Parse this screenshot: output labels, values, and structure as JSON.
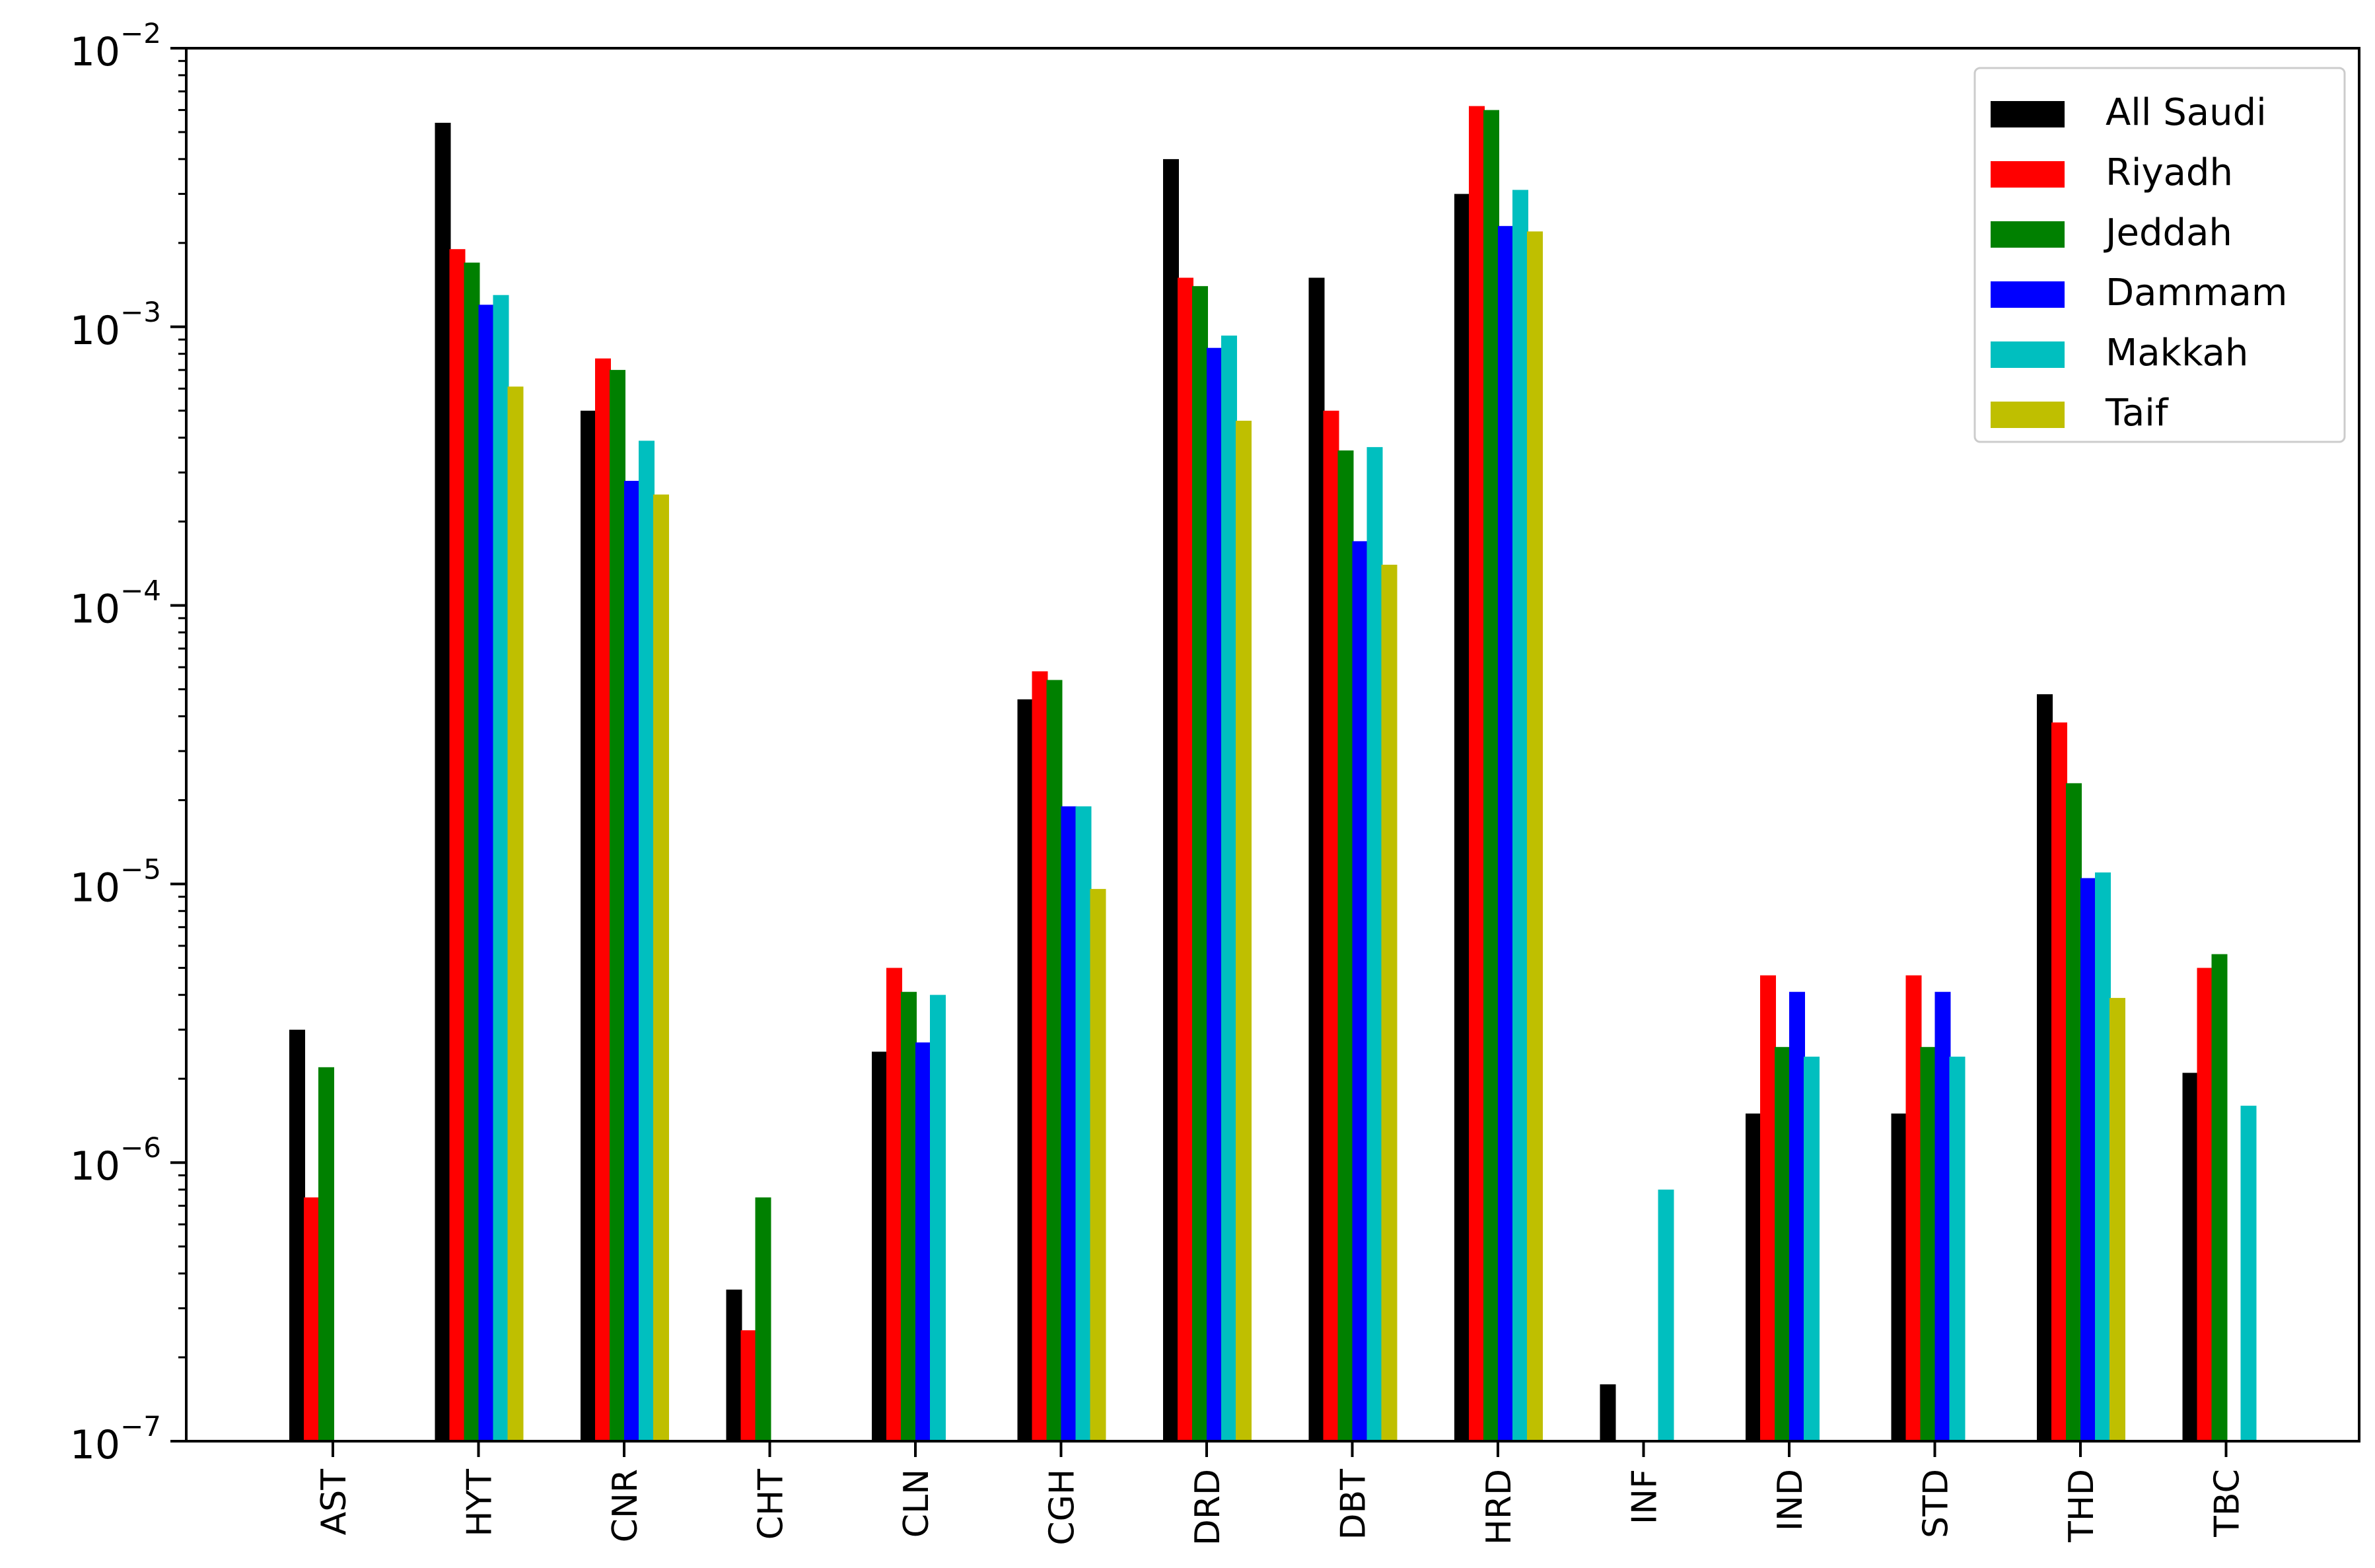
{
  "chart_data": {
    "type": "bar",
    "title": "",
    "xlabel": "",
    "ylabel": "",
    "yscale": "log",
    "ylim": [
      1e-07,
      0.01
    ],
    "grid": false,
    "legend_position": "top-right",
    "categories": [
      "AST",
      "HYT",
      "CNR",
      "CHT",
      "CLN",
      "CGH",
      "DRD",
      "DBT",
      "HRD",
      "INF",
      "IND",
      "STD",
      "THD",
      "TBC"
    ],
    "y_tick_labels": [
      {
        "value": 1e-07,
        "base": "10",
        "exp": "−7"
      },
      {
        "value": 1e-06,
        "base": "10",
        "exp": "−6"
      },
      {
        "value": 1e-05,
        "base": "10",
        "exp": "−5"
      },
      {
        "value": 0.0001,
        "base": "10",
        "exp": "−4"
      },
      {
        "value": 0.001,
        "base": "10",
        "exp": "−3"
      },
      {
        "value": 0.01,
        "base": "10",
        "exp": "−2"
      }
    ],
    "series": [
      {
        "name": "All Saudi",
        "color": "#000000",
        "values": [
          3e-06,
          0.0054,
          0.0005,
          3.5e-07,
          2.5e-06,
          4.6e-05,
          0.004,
          0.0015,
          0.003,
          1.6e-07,
          1.5e-06,
          1.5e-06,
          4.8e-05,
          2.1e-06
        ]
      },
      {
        "name": "Riyadh",
        "color": "#ff0000",
        "values": [
          7.5e-07,
          0.0019,
          0.00077,
          2.5e-07,
          5e-06,
          5.8e-05,
          0.0015,
          0.0005,
          0.0062,
          null,
          4.7e-06,
          4.7e-06,
          3.8e-05,
          5e-06
        ]
      },
      {
        "name": "Jeddah",
        "color": "#008000",
        "values": [
          2.2e-06,
          0.0017,
          0.0007,
          7.5e-07,
          4.1e-06,
          5.4e-05,
          0.0014,
          0.00036,
          0.006,
          null,
          2.6e-06,
          2.6e-06,
          2.3e-05,
          5.6e-06
        ]
      },
      {
        "name": "Dammam",
        "color": "#0000ff",
        "values": [
          null,
          0.0012,
          0.00028,
          null,
          2.7e-06,
          1.9e-05,
          0.00084,
          0.00017,
          0.0023,
          null,
          4.1e-06,
          4.1e-06,
          1.05e-05,
          null
        ]
      },
      {
        "name": "Makkah",
        "color": "#00bfbf",
        "values": [
          null,
          0.0013,
          0.00039,
          null,
          4e-06,
          1.9e-05,
          0.00093,
          0.00037,
          0.0031,
          8e-07,
          2.4e-06,
          2.4e-06,
          1.1e-05,
          1.6e-06
        ]
      },
      {
        "name": "Taif",
        "color": "#bfbf00",
        "values": [
          null,
          0.00061,
          0.00025,
          null,
          null,
          9.6e-06,
          0.00046,
          0.00014,
          0.0022,
          null,
          null,
          null,
          3.9e-06,
          null
        ]
      }
    ]
  }
}
